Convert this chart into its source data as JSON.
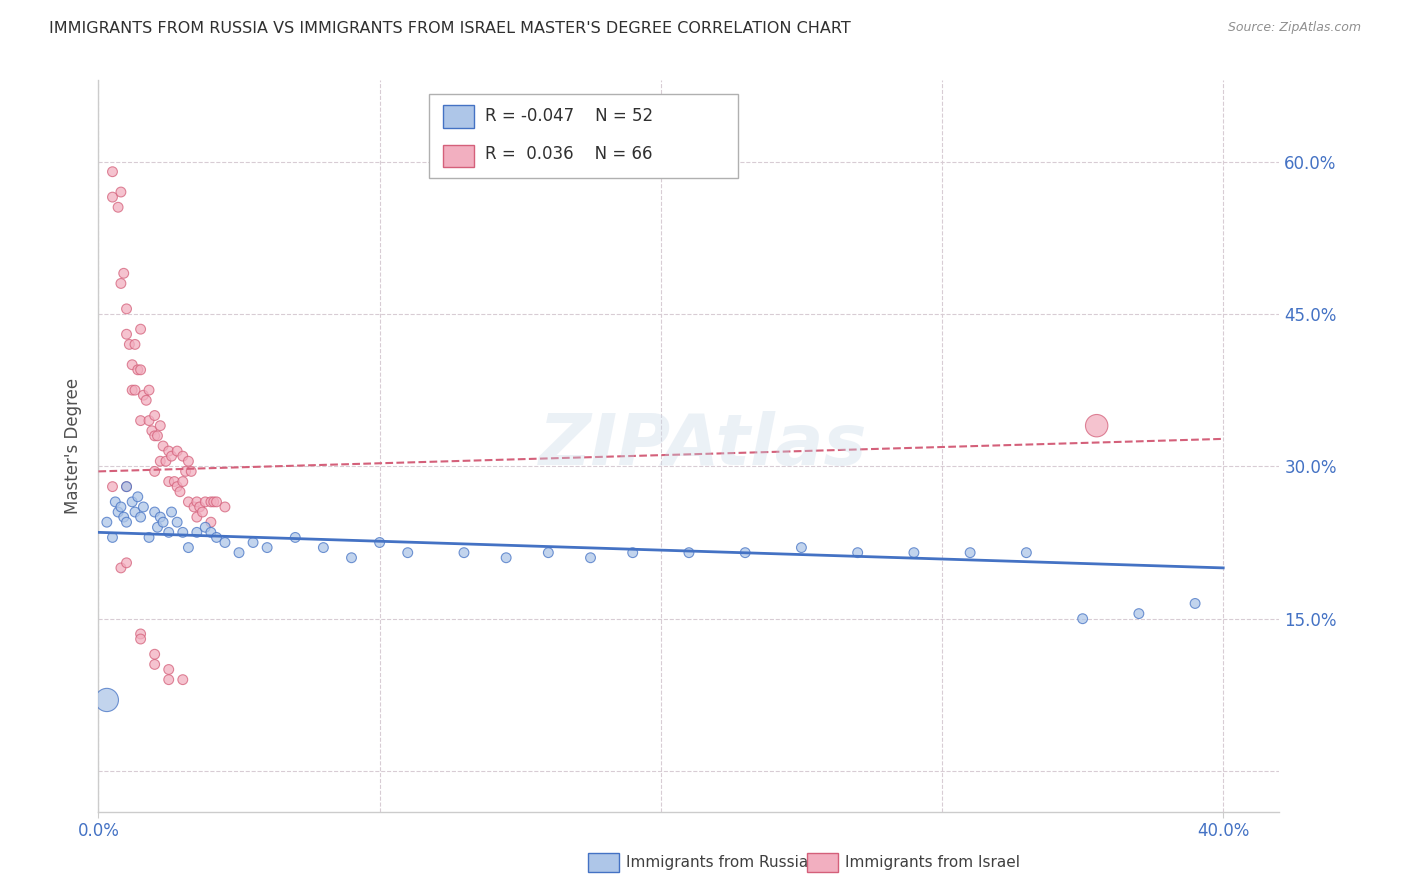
{
  "title": "IMMIGRANTS FROM RUSSIA VS IMMIGRANTS FROM ISRAEL MASTER'S DEGREE CORRELATION CHART",
  "source": "Source: ZipAtlas.com",
  "ylabel": "Master's Degree",
  "xlim": [
    0.0,
    0.42
  ],
  "ylim": [
    -0.04,
    0.68
  ],
  "legend_russia": "Immigrants from Russia",
  "legend_israel": "Immigrants from Israel",
  "R_russia": "-0.047",
  "N_russia": "52",
  "R_israel": "0.036",
  "N_israel": "66",
  "color_russia_fill": "#aec6e8",
  "color_israel_fill": "#f2afc0",
  "color_russia_edge": "#4472c4",
  "color_israel_edge": "#d4607a",
  "color_russia_line": "#4472c4",
  "color_israel_line": "#d4607a",
  "title_color": "#303030",
  "axis_label_color": "#4472c4",
  "yticks": [
    0.0,
    0.15,
    0.3,
    0.45,
    0.6
  ],
  "ytick_labels_right": [
    "",
    "15.0%",
    "30.0%",
    "45.0%",
    "60.0%"
  ],
  "xtick_positions": [
    0.0,
    0.4
  ],
  "xtick_labels": [
    "0.0%",
    "40.0%"
  ],
  "russia_x": [
    0.003,
    0.005,
    0.006,
    0.007,
    0.008,
    0.009,
    0.01,
    0.01,
    0.012,
    0.013,
    0.014,
    0.015,
    0.016,
    0.018,
    0.02,
    0.021,
    0.022,
    0.023,
    0.025,
    0.026,
    0.028,
    0.03,
    0.032,
    0.035,
    0.038,
    0.04,
    0.042,
    0.045,
    0.05,
    0.055,
    0.06,
    0.07,
    0.08,
    0.09,
    0.1,
    0.11,
    0.13,
    0.145,
    0.16,
    0.175,
    0.19,
    0.21,
    0.23,
    0.25,
    0.27,
    0.29,
    0.31,
    0.33,
    0.35,
    0.37,
    0.39,
    0.003
  ],
  "russia_y": [
    0.245,
    0.23,
    0.265,
    0.255,
    0.26,
    0.25,
    0.28,
    0.245,
    0.265,
    0.255,
    0.27,
    0.25,
    0.26,
    0.23,
    0.255,
    0.24,
    0.25,
    0.245,
    0.235,
    0.255,
    0.245,
    0.235,
    0.22,
    0.235,
    0.24,
    0.235,
    0.23,
    0.225,
    0.215,
    0.225,
    0.22,
    0.23,
    0.22,
    0.21,
    0.225,
    0.215,
    0.215,
    0.21,
    0.215,
    0.21,
    0.215,
    0.215,
    0.215,
    0.22,
    0.215,
    0.215,
    0.215,
    0.215,
    0.15,
    0.155,
    0.165,
    0.07
  ],
  "russia_sizes": [
    50,
    50,
    50,
    50,
    50,
    50,
    50,
    50,
    50,
    50,
    50,
    50,
    50,
    50,
    50,
    50,
    50,
    50,
    50,
    50,
    50,
    50,
    50,
    50,
    50,
    50,
    50,
    50,
    50,
    50,
    50,
    50,
    50,
    50,
    50,
    50,
    50,
    50,
    50,
    50,
    50,
    50,
    50,
    50,
    50,
    50,
    50,
    50,
    50,
    50,
    50,
    280
  ],
  "israel_x": [
    0.005,
    0.005,
    0.007,
    0.008,
    0.008,
    0.009,
    0.01,
    0.01,
    0.011,
    0.012,
    0.012,
    0.013,
    0.013,
    0.014,
    0.015,
    0.015,
    0.015,
    0.016,
    0.017,
    0.018,
    0.018,
    0.019,
    0.02,
    0.02,
    0.02,
    0.021,
    0.022,
    0.022,
    0.023,
    0.024,
    0.025,
    0.025,
    0.026,
    0.027,
    0.028,
    0.028,
    0.029,
    0.03,
    0.03,
    0.031,
    0.032,
    0.032,
    0.033,
    0.034,
    0.035,
    0.035,
    0.036,
    0.037,
    0.038,
    0.04,
    0.04,
    0.041,
    0.042,
    0.045,
    0.008,
    0.01,
    0.015,
    0.02,
    0.025,
    0.03,
    0.005,
    0.01,
    0.015,
    0.02,
    0.025,
    0.355
  ],
  "israel_y": [
    0.59,
    0.565,
    0.555,
    0.57,
    0.48,
    0.49,
    0.43,
    0.455,
    0.42,
    0.4,
    0.375,
    0.42,
    0.375,
    0.395,
    0.435,
    0.395,
    0.345,
    0.37,
    0.365,
    0.375,
    0.345,
    0.335,
    0.35,
    0.33,
    0.295,
    0.33,
    0.34,
    0.305,
    0.32,
    0.305,
    0.315,
    0.285,
    0.31,
    0.285,
    0.315,
    0.28,
    0.275,
    0.31,
    0.285,
    0.295,
    0.305,
    0.265,
    0.295,
    0.26,
    0.265,
    0.25,
    0.26,
    0.255,
    0.265,
    0.265,
    0.245,
    0.265,
    0.265,
    0.26,
    0.2,
    0.205,
    0.135,
    0.105,
    0.09,
    0.09,
    0.28,
    0.28,
    0.13,
    0.115,
    0.1,
    0.34
  ],
  "israel_sizes": [
    50,
    50,
    50,
    50,
    50,
    50,
    50,
    50,
    50,
    50,
    50,
    50,
    50,
    50,
    50,
    50,
    50,
    50,
    50,
    50,
    50,
    50,
    50,
    50,
    50,
    50,
    50,
    50,
    50,
    50,
    50,
    50,
    50,
    50,
    50,
    50,
    50,
    50,
    50,
    50,
    50,
    50,
    50,
    50,
    50,
    50,
    50,
    50,
    50,
    50,
    50,
    50,
    50,
    50,
    50,
    50,
    50,
    50,
    50,
    50,
    50,
    50,
    50,
    50,
    50,
    260
  ],
  "russia_trend": [
    0.235,
    0.2
  ],
  "israel_trend": [
    0.295,
    0.327
  ],
  "grid_color": "#d8ccd4",
  "border_color": "#cccccc"
}
